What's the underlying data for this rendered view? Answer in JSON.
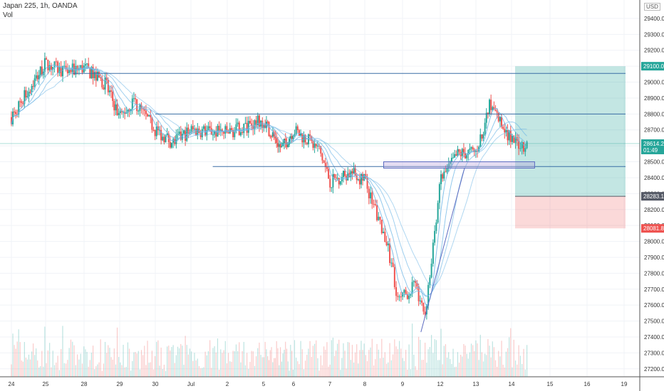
{
  "header": {
    "title": "Japan 225, 1h, OANDA",
    "sub": "Vol"
  },
  "currency": "USD",
  "colors": {
    "up": "#26a69a",
    "down": "#ef5350",
    "hline": "#3a6ea5",
    "ma": "#6fb7e6",
    "target": "#26a69a",
    "stop": "#ef5350"
  },
  "chart_data": {
    "type": "candlestick",
    "title": "Japan 225, 1h, OANDA",
    "volume_label": "Vol",
    "x_tick_labels": [
      "24",
      "25",
      "28",
      "29",
      "30",
      "Jul",
      "2",
      "5",
      "6",
      "7",
      "8",
      "9",
      "12",
      "13",
      "14",
      "15",
      "16",
      "19"
    ],
    "y_ticks": [
      27200,
      27300,
      27400,
      27500,
      27600,
      27700,
      27800,
      27900,
      28000,
      28100,
      28200,
      28300,
      28400,
      28500,
      28600,
      28700,
      28800,
      28900,
      29000,
      29100,
      29200,
      29300,
      29400
    ],
    "y_top_partial_label": "2!",
    "ylim": [
      27150,
      29480
    ],
    "price_path": [
      {
        "day": 0,
        "price": 28780
      },
      {
        "day": 1,
        "price": 29120
      },
      {
        "day": 1.5,
        "price": 29060
      },
      {
        "day": 2,
        "price": 29090
      },
      {
        "day": 2.6,
        "price": 28990
      },
      {
        "day": 3,
        "price": 28780
      },
      {
        "day": 3.4,
        "price": 28880
      },
      {
        "day": 4,
        "price": 28700
      },
      {
        "day": 4.5,
        "price": 28620
      },
      {
        "day": 5,
        "price": 28700
      },
      {
        "day": 6,
        "price": 28680
      },
      {
        "day": 7,
        "price": 28760
      },
      {
        "day": 7.6,
        "price": 28580
      },
      {
        "day": 8,
        "price": 28700
      },
      {
        "day": 8.7,
        "price": 28580
      },
      {
        "day": 9,
        "price": 28380
      },
      {
        "day": 9.6,
        "price": 28430
      },
      {
        "day": 10,
        "price": 28380
      },
      {
        "day": 10.6,
        "price": 27980
      },
      {
        "day": 10.9,
        "price": 27620
      },
      {
        "day": 11.3,
        "price": 27720
      },
      {
        "day": 11.6,
        "price": 27550
      },
      {
        "day": 12,
        "price": 28380
      },
      {
        "day": 12.5,
        "price": 28550
      },
      {
        "day": 13,
        "price": 28560
      },
      {
        "day": 13.4,
        "price": 28860
      },
      {
        "day": 14,
        "price": 28630
      },
      {
        "day": 14.4,
        "price": 28600
      }
    ],
    "horizontal_levels": [
      {
        "price": 29055,
        "from_day": 1.7
      },
      {
        "price": 28800,
        "from_day": 4.0
      },
      {
        "price": 28470,
        "from_day": 5.6
      }
    ],
    "support_zone": {
      "from_day": 10.5,
      "to_day": 14.6,
      "low": 28460,
      "high": 28500
    },
    "trendline": [
      {
        "day": 11.6,
        "price": 27520
      },
      {
        "day": 12.6,
        "price": 28460
      }
    ],
    "position": {
      "type": "long",
      "from_day": 13.7,
      "to_day": 16.0,
      "entry": 28283.1,
      "target": 29100.0,
      "stop": 28081.8
    },
    "price_labels": [
      {
        "text": "29100.0",
        "price": 29100.0,
        "color": "#26a69a"
      },
      {
        "text": "28614.2",
        "price": 28614.2,
        "color": "#26a69a"
      },
      {
        "text": "01:49",
        "price": 28560,
        "color": "#26a69a"
      },
      {
        "text": "28283.1",
        "price": 28283.1,
        "color": "#555a66"
      },
      {
        "text": "28081.8",
        "price": 28081.8,
        "color": "#ef5350"
      }
    ]
  }
}
